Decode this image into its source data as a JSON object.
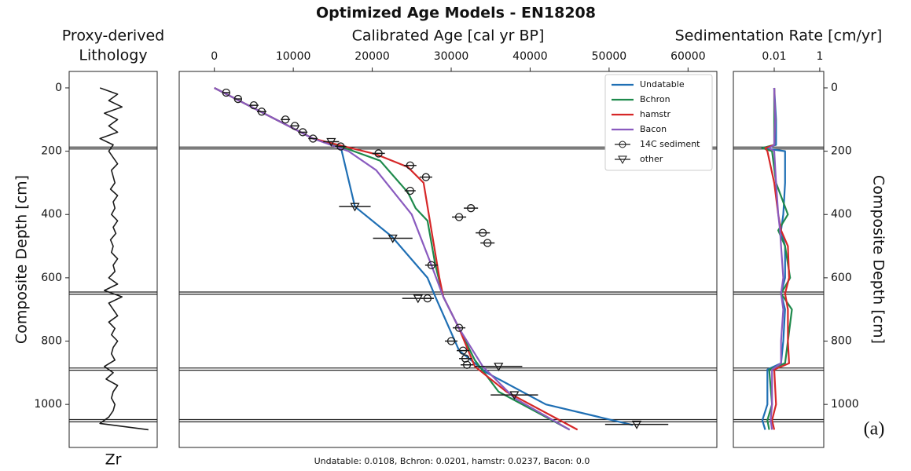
{
  "title": "Optimized Age Models - EN18208",
  "note": "Undatable: 0.0108, Bchron: 0.0201, hamstr: 0.0237, Bacon: 0.0",
  "panel_label": "(a)",
  "event_depths": [
    187,
    193,
    645,
    652,
    885,
    892,
    1048,
    1055
  ],
  "chart_data": [
    {
      "type": "line",
      "title": [
        "Proxy-derived",
        "Lithology"
      ],
      "xlabel": "Zr",
      "xlabel_side": "bottom",
      "ylabel": "Composite Depth [cm]",
      "ylabel_side": "left",
      "xlim": [
        0,
        1
      ],
      "ylim": [
        1136,
        -52
      ],
      "yticks": [
        0,
        200,
        400,
        600,
        800,
        1000
      ],
      "series": [
        {
          "color": "#1a1a1a",
          "x": [
            0.35,
            0.55,
            0.45,
            0.6,
            0.4,
            0.55,
            0.45,
            0.55,
            0.35,
            0.5,
            0.45,
            0.5,
            0.55,
            0.48,
            0.5,
            0.52,
            0.47,
            0.55,
            0.5,
            0.52,
            0.48,
            0.55,
            0.5,
            0.53,
            0.47,
            0.5,
            0.48,
            0.55,
            0.5,
            0.52,
            0.45,
            0.55,
            0.4,
            0.6,
            0.45,
            0.5,
            0.55,
            0.45,
            0.52,
            0.48,
            0.55,
            0.5,
            0.48,
            0.52,
            0.4,
            0.5,
            0.42,
            0.55,
            0.5,
            0.48,
            0.52,
            0.5,
            0.45,
            0.35,
            0.9
          ],
          "y": [
            0,
            20,
            40,
            60,
            80,
            100,
            120,
            140,
            160,
            180,
            200,
            220,
            240,
            260,
            280,
            300,
            320,
            340,
            360,
            380,
            400,
            420,
            440,
            460,
            480,
            500,
            520,
            540,
            560,
            580,
            600,
            620,
            640,
            660,
            680,
            700,
            720,
            740,
            760,
            780,
            800,
            820,
            840,
            860,
            880,
            900,
            920,
            940,
            960,
            980,
            1000,
            1020,
            1040,
            1060,
            1080
          ]
        }
      ]
    },
    {
      "type": "line",
      "xlabel": "Calibrated Age [cal yr BP]",
      "xlabel_side": "top",
      "legend": "upper right",
      "xlim": [
        -4450,
        63650
      ],
      "ylim": [
        1136,
        -52
      ],
      "xticks": [
        0,
        10000,
        20000,
        30000,
        40000,
        50000,
        60000
      ],
      "series": [
        {
          "name": "Undatable",
          "color": "#1f6fb4",
          "x": [
            0,
            12500,
            16000,
            17800,
            22500,
            27000,
            28000,
            31000,
            34500,
            42000,
            53000
          ],
          "y": [
            0,
            160,
            185,
            375,
            470,
            600,
            660,
            830,
            900,
            1000,
            1065
          ]
        },
        {
          "name": "Bchron",
          "color": "#1e8a4c",
          "x": [
            0,
            12500,
            16000,
            21000,
            24500,
            25500,
            27000,
            28000,
            29000,
            31000,
            33000,
            36000,
            45000
          ],
          "y": [
            0,
            160,
            185,
            230,
            330,
            380,
            420,
            560,
            660,
            760,
            860,
            960,
            1080
          ]
        },
        {
          "name": "hamstr",
          "color": "#d62728",
          "x": [
            0,
            12500,
            16500,
            20500,
            24500,
            26500,
            27500,
            28500,
            29000,
            31000,
            33000,
            37000,
            46000
          ],
          "y": [
            0,
            160,
            185,
            210,
            250,
            300,
            450,
            600,
            660,
            760,
            880,
            960,
            1080
          ]
        },
        {
          "name": "Bacon",
          "color": "#8a5bbf",
          "x": [
            0,
            12500,
            17000,
            20500,
            25000,
            27500,
            29000,
            31000,
            34000,
            38000,
            45000
          ],
          "y": [
            0,
            160,
            200,
            260,
            400,
            560,
            660,
            760,
            880,
            980,
            1080
          ]
        },
        {
          "name": "14C sediment",
          "color": "#1a1a1a",
          "marker": "o",
          "x": [
            1500,
            3000,
            5000,
            6000,
            9000,
            10200,
            11200,
            12500,
            16000,
            20800,
            24800,
            26800,
            24800,
            32500,
            31000,
            34000,
            34600,
            27500,
            27000,
            31000,
            30000,
            31500,
            31800,
            32000
          ],
          "y": [
            15,
            35,
            55,
            75,
            100,
            120,
            140,
            160,
            185,
            207,
            245,
            282,
            325,
            380,
            408,
            458,
            490,
            560,
            665,
            758,
            800,
            830,
            855,
            875
          ],
          "xerr": [
            500,
            500,
            600,
            600,
            600,
            600,
            600,
            600,
            700,
            800,
            800,
            800,
            700,
            900,
            900,
            900,
            900,
            800,
            800,
            800,
            800,
            800,
            800,
            800
          ]
        },
        {
          "name": "other",
          "color": "#1a1a1a",
          "marker": "v",
          "x": [
            14800,
            17800,
            22600,
            25800,
            36000,
            38000,
            53500
          ],
          "y": [
            170,
            375,
            475,
            665,
            880,
            970,
            1063
          ],
          "xerr": [
            1000,
            2000,
            2500,
            2000,
            3000,
            3000,
            4000
          ]
        }
      ]
    },
    {
      "type": "line",
      "xlabel": "Sedimentation Rate [cm/yr]",
      "xlabel_side": "top",
      "xscale": "log",
      "ylabel": "Composite Depth [cm]",
      "ylabel_side": "right",
      "xlim": [
        0.00016,
        1.5
      ],
      "ylim": [
        1136,
        -52
      ],
      "xticks": [
        0.01,
        1
      ],
      "yticks": [
        0,
        200,
        400,
        600,
        800,
        1000
      ],
      "series": [
        {
          "color": "#1f6fb4",
          "x": [
            0.01,
            0.012,
            0.012,
            0.003,
            0.03,
            0.03,
            0.025,
            0.02,
            0.03,
            0.03,
            0.02,
            0.03,
            0.025,
            0.02,
            0.005,
            0.005,
            0.003,
            0.004
          ],
          "y": [
            0,
            100,
            180,
            190,
            200,
            300,
            400,
            450,
            500,
            600,
            650,
            700,
            800,
            870,
            890,
            1000,
            1050,
            1080
          ]
        },
        {
          "color": "#1e8a4c",
          "x": [
            0.01,
            0.01,
            0.01,
            0.003,
            0.008,
            0.012,
            0.04,
            0.015,
            0.03,
            0.05,
            0.02,
            0.06,
            0.04,
            0.03,
            0.006,
            0.008,
            0.005,
            0.006
          ],
          "y": [
            0,
            100,
            180,
            190,
            200,
            300,
            400,
            450,
            500,
            600,
            650,
            700,
            800,
            870,
            890,
            1000,
            1050,
            1080
          ]
        },
        {
          "color": "#d62728",
          "x": [
            0.01,
            0.011,
            0.01,
            0.004,
            0.005,
            0.01,
            0.015,
            0.02,
            0.04,
            0.045,
            0.03,
            0.04,
            0.04,
            0.045,
            0.01,
            0.012,
            0.008,
            0.01
          ],
          "y": [
            0,
            100,
            180,
            190,
            200,
            300,
            400,
            450,
            500,
            600,
            650,
            700,
            800,
            870,
            890,
            1000,
            1050,
            1080
          ]
        },
        {
          "color": "#8a5bbf",
          "x": [
            0.01,
            0.011,
            0.01,
            0.006,
            0.01,
            0.012,
            0.015,
            0.018,
            0.02,
            0.025,
            0.02,
            0.025,
            0.02,
            0.02,
            0.008,
            0.008,
            0.007,
            0.008
          ],
          "y": [
            0,
            100,
            180,
            190,
            200,
            300,
            400,
            450,
            500,
            600,
            650,
            700,
            800,
            870,
            890,
            1000,
            1050,
            1080
          ]
        }
      ]
    }
  ]
}
